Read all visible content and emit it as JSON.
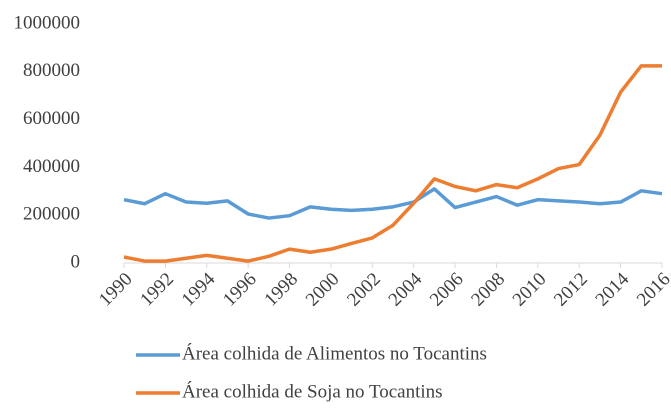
{
  "chart_data": {
    "type": "line",
    "x": [
      1990,
      1991,
      1992,
      1993,
      1994,
      1995,
      1996,
      1997,
      1998,
      1999,
      2000,
      2001,
      2002,
      2003,
      2004,
      2005,
      2006,
      2007,
      2008,
      2009,
      2010,
      2011,
      2012,
      2013,
      2014,
      2015,
      2016
    ],
    "series": [
      {
        "name": "Área colhida de Alimentos no Tocantins",
        "color": "#5b9bd5",
        "values": [
          265000,
          248000,
          290000,
          255000,
          250000,
          260000,
          205000,
          188000,
          198000,
          235000,
          225000,
          220000,
          225000,
          235000,
          255000,
          310000,
          232000,
          255000,
          278000,
          242000,
          265000,
          260000,
          255000,
          248000,
          255000,
          302000,
          290000
        ]
      },
      {
        "name": "Área colhida de Soja no Tocantins",
        "color": "#ed7d31",
        "values": [
          25000,
          8000,
          8000,
          20000,
          32000,
          20000,
          8000,
          28000,
          58000,
          45000,
          58000,
          82000,
          105000,
          158000,
          250000,
          352000,
          320000,
          302000,
          328000,
          315000,
          352000,
          395000,
          412000,
          535000,
          715000,
          825000,
          825000
        ]
      }
    ],
    "xlim": [
      1990,
      2016
    ],
    "xticks": [
      1990,
      1992,
      1994,
      1996,
      1998,
      2000,
      2002,
      2004,
      2006,
      2008,
      2010,
      2012,
      2014,
      2016
    ],
    "ylim": [
      0,
      1000000
    ],
    "yticks": [
      0,
      200000,
      400000,
      600000,
      800000,
      1000000
    ],
    "grid": false,
    "legend": "bottom"
  }
}
